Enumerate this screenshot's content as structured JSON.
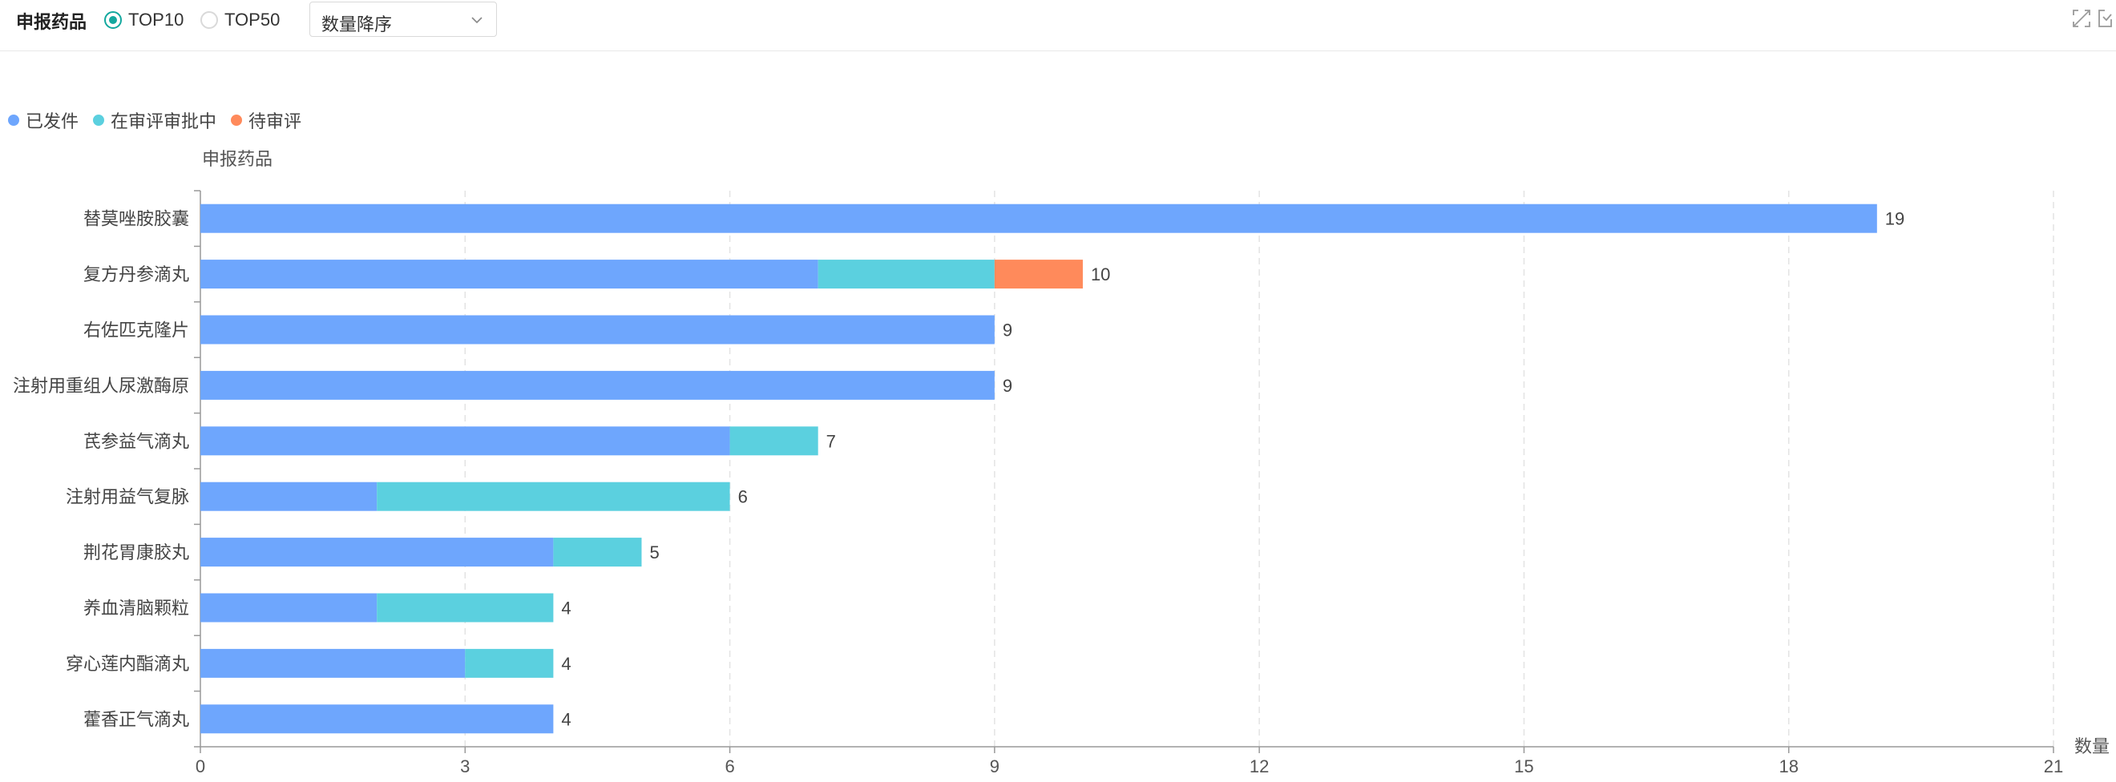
{
  "toolbar": {
    "title": "申报药品",
    "radio_top10": "TOP10",
    "radio_top50": "TOP50",
    "selected_radio": "TOP10",
    "sort_select": "数量降序"
  },
  "icons": {
    "expand": "expand-icon",
    "export": "export-icon"
  },
  "colors": {
    "issued": "#6ea6fd",
    "reviewing": "#5bd0df",
    "pending": "#ff8a5b",
    "accent": "#13a89e"
  },
  "chart_data": {
    "type": "bar",
    "orientation": "horizontal",
    "stacked": true,
    "ylabel": "申报药品",
    "xlabel": "数量",
    "xlim": [
      0,
      21
    ],
    "xticks": [
      0,
      3,
      6,
      9,
      12,
      15,
      18,
      21
    ],
    "grid": true,
    "legend_position": "top-left",
    "categories": [
      "替莫唑胺胶囊",
      "复方丹参滴丸",
      "右佐匹克隆片",
      "注射用重组人尿激酶原",
      "芪参益气滴丸",
      "注射用益气复脉",
      "荆花胃康胶丸",
      "养血清脑颗粒",
      "穿心莲内酯滴丸",
      "藿香正气滴丸"
    ],
    "series": [
      {
        "name": "已发件",
        "values": [
          19,
          7,
          9,
          9,
          6,
          2,
          4,
          2,
          3,
          4
        ],
        "color": "#6ea6fd"
      },
      {
        "name": "在审评审批中",
        "values": [
          0,
          2,
          0,
          0,
          1,
          4,
          1,
          2,
          1,
          0
        ],
        "color": "#5bd0df"
      },
      {
        "name": "待审评",
        "values": [
          0,
          1,
          0,
          0,
          0,
          0,
          0,
          0,
          0,
          0
        ],
        "color": "#ff8a5b"
      }
    ],
    "totals": [
      19,
      10,
      9,
      9,
      7,
      6,
      5,
      4,
      4,
      4
    ]
  }
}
